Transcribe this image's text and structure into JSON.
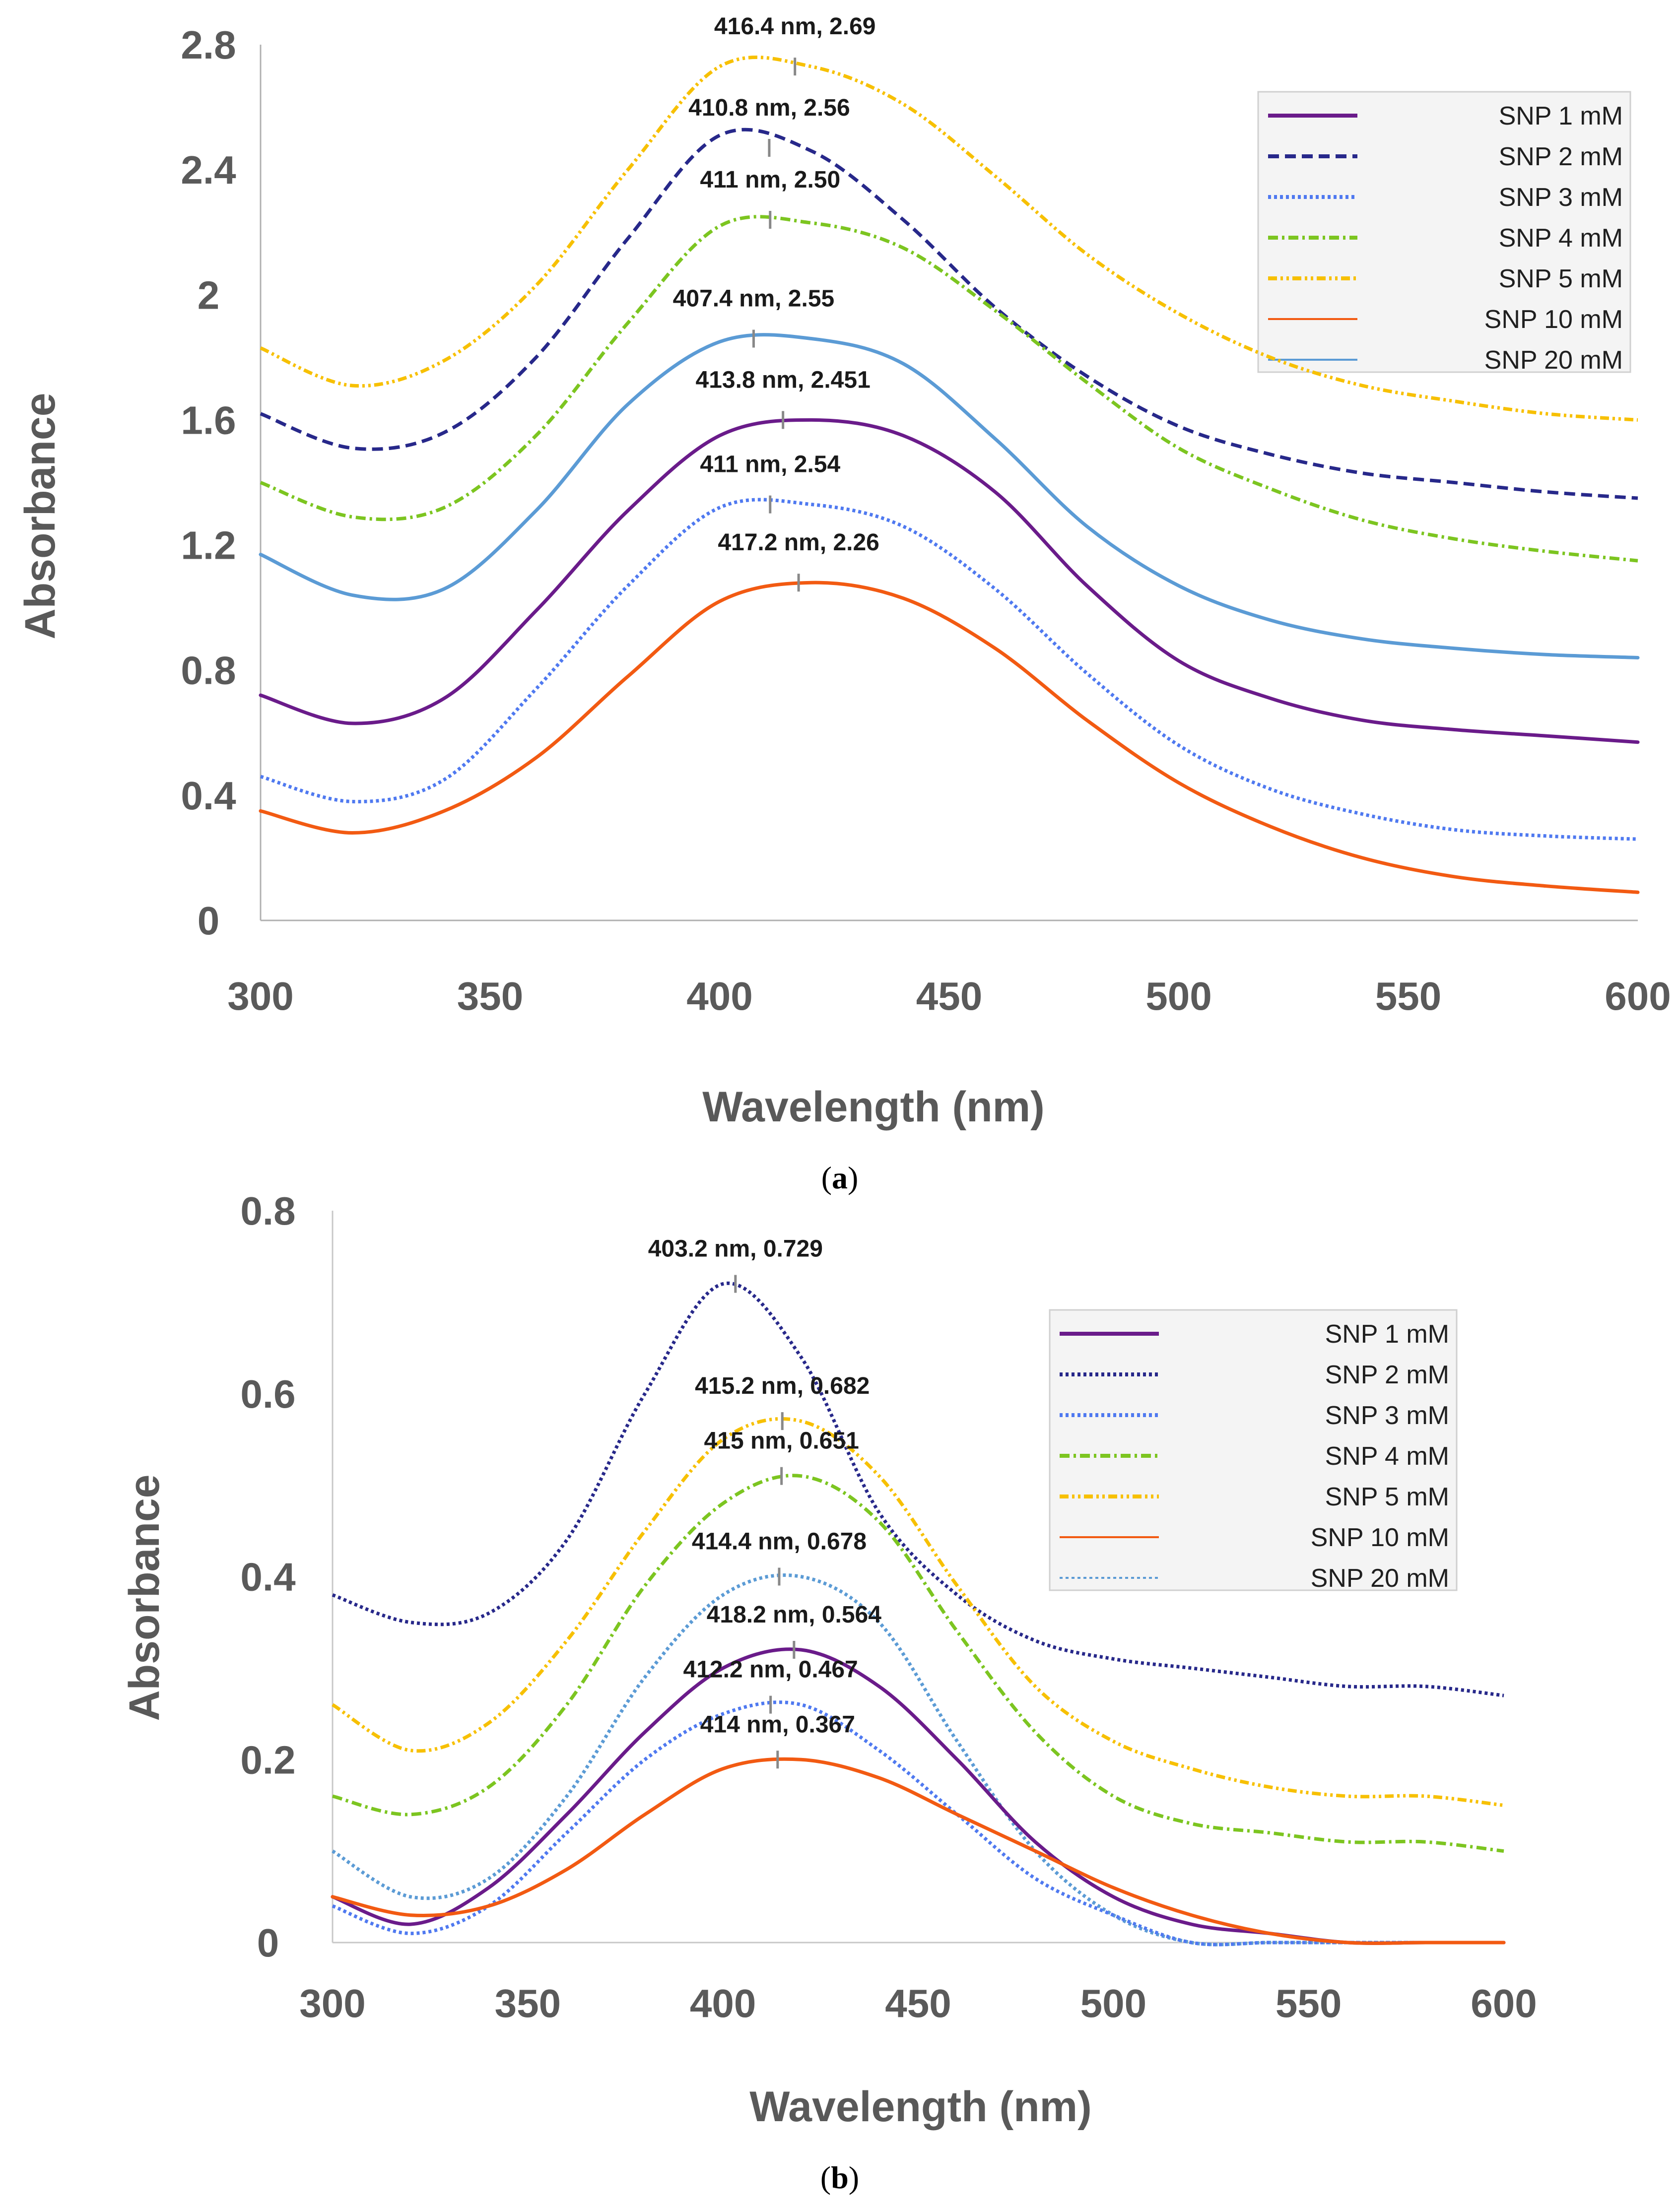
{
  "colors": {
    "SNP 1 mM": "#6a1b8a",
    "SNP 2 mM": "#27288a",
    "SNP 3 mM": "#4f79f0",
    "SNP 4 mM": "#7cc520",
    "SNP 5 mM": "#f7c000",
    "SNP 10 mM": "#f25a12",
    "SNP 20 mM": "#5b9bd5"
  },
  "chart_data": [
    {
      "id": "a",
      "type": "line",
      "caption": "a",
      "xlabel": "Wavelength (nm)",
      "ylabel": "Absorbance",
      "xlim": [
        300,
        600
      ],
      "ylim": [
        0,
        2.8
      ],
      "xticks": [
        "300",
        "350",
        "400",
        "450",
        "500",
        "550",
        "600"
      ],
      "yticks": [
        "0",
        "0.4",
        "0.8",
        "1.2",
        "1.6",
        "2",
        "2.4",
        "2.8"
      ],
      "legend": [
        "SNP 1 mM",
        "SNP 2 mM",
        "SNP 3 mM",
        "SNP 4 mM",
        "SNP 5 mM",
        "SNP 10 mM",
        "SNP 20 mM"
      ],
      "series": [
        {
          "name": "SNP 5 mM",
          "style": "dashdotdot",
          "x": [
            300,
            320,
            340,
            360,
            380,
            400,
            420,
            440,
            460,
            480,
            500,
            520,
            540,
            560,
            580,
            600
          ],
          "y": [
            1.83,
            1.71,
            1.79,
            2.03,
            2.4,
            2.73,
            2.73,
            2.61,
            2.38,
            2.13,
            1.94,
            1.8,
            1.71,
            1.66,
            1.62,
            1.6
          ]
        },
        {
          "name": "SNP 2 mM",
          "style": "dashed",
          "x": [
            300,
            320,
            340,
            360,
            380,
            400,
            420,
            440,
            460,
            480,
            500,
            520,
            540,
            560,
            580,
            600
          ],
          "y": [
            1.62,
            1.51,
            1.56,
            1.8,
            2.18,
            2.51,
            2.46,
            2.24,
            1.96,
            1.74,
            1.58,
            1.49,
            1.43,
            1.4,
            1.37,
            1.35
          ]
        },
        {
          "name": "SNP 4 mM",
          "style": "dashdot",
          "x": [
            300,
            320,
            340,
            360,
            380,
            400,
            420,
            440,
            460,
            480,
            500,
            520,
            540,
            560,
            580,
            600
          ],
          "y": [
            1.4,
            1.29,
            1.32,
            1.55,
            1.91,
            2.22,
            2.23,
            2.15,
            1.95,
            1.72,
            1.51,
            1.38,
            1.28,
            1.22,
            1.18,
            1.15
          ]
        },
        {
          "name": "SNP 20 mM",
          "style": "solid",
          "x": [
            300,
            320,
            340,
            360,
            380,
            400,
            420,
            440,
            460,
            480,
            500,
            520,
            540,
            560,
            580,
            600
          ],
          "y": [
            1.17,
            1.04,
            1.06,
            1.31,
            1.65,
            1.85,
            1.86,
            1.78,
            1.54,
            1.26,
            1.07,
            0.96,
            0.9,
            0.87,
            0.85,
            0.84
          ]
        },
        {
          "name": "SNP 1 mM",
          "style": "solid",
          "x": [
            300,
            320,
            340,
            360,
            380,
            400,
            420,
            440,
            460,
            480,
            500,
            520,
            540,
            560,
            580,
            600
          ],
          "y": [
            0.72,
            0.63,
            0.71,
            0.99,
            1.31,
            1.55,
            1.6,
            1.55,
            1.37,
            1.07,
            0.83,
            0.71,
            0.64,
            0.61,
            0.59,
            0.57
          ]
        },
        {
          "name": "SNP 3 mM",
          "style": "dotted",
          "x": [
            300,
            320,
            340,
            360,
            380,
            400,
            420,
            440,
            460,
            480,
            500,
            520,
            540,
            560,
            580,
            600
          ],
          "y": [
            0.46,
            0.38,
            0.45,
            0.74,
            1.07,
            1.32,
            1.33,
            1.26,
            1.06,
            0.79,
            0.56,
            0.42,
            0.34,
            0.29,
            0.27,
            0.26
          ]
        },
        {
          "name": "SNP 10 mM",
          "style": "solid",
          "x": [
            300,
            320,
            340,
            360,
            380,
            400,
            420,
            440,
            460,
            480,
            500,
            520,
            540,
            560,
            580,
            600
          ],
          "y": [
            0.35,
            0.28,
            0.35,
            0.52,
            0.78,
            1.02,
            1.08,
            1.03,
            0.87,
            0.64,
            0.44,
            0.3,
            0.2,
            0.14,
            0.11,
            0.09
          ]
        }
      ],
      "annotations": [
        {
          "text": "416.4 nm, 2.69",
          "x": 416.4,
          "y": 2.73,
          "dy": 1.0
        },
        {
          "text": "410.8 nm, 2.56",
          "x": 410.8,
          "y": 2.47,
          "dy": 0.73
        },
        {
          "text": "411 nm, 2.50",
          "x": 411,
          "y": 2.24,
          "dy": 0.73
        },
        {
          "text": "407.4 nm, 2.55",
          "x": 407.4,
          "y": 1.86,
          "dy": 0.73
        },
        {
          "text": "413.8 nm, 2.451",
          "x": 413.8,
          "y": 1.6,
          "dy": 0.73
        },
        {
          "text": "411 nm, 2.54",
          "x": 411,
          "y": 1.33,
          "dy": 0.73
        },
        {
          "text": "417.2 nm, 2.26",
          "x": 417.2,
          "y": 1.08,
          "dy": 0.73
        }
      ]
    },
    {
      "id": "b",
      "type": "line",
      "caption": "b",
      "xlabel": "Wavelength (nm)",
      "ylabel": "Absorbance",
      "xlim": [
        300,
        600
      ],
      "ylim": [
        0,
        0.8
      ],
      "xticks": [
        "300",
        "350",
        "400",
        "450",
        "500",
        "550",
        "600"
      ],
      "yticks": [
        "0",
        "0.2",
        "0.4",
        "0.6",
        "0.8"
      ],
      "legend": [
        "SNP 1 mM",
        "SNP 2 mM",
        "SNP 3 mM",
        "SNP 4 mM",
        "SNP 5 mM",
        "SNP 10 mM",
        "SNP 20 mM"
      ],
      "series": [
        {
          "name": "SNP 2 mM",
          "style": "dotted",
          "x": [
            300,
            320,
            340,
            360,
            380,
            400,
            420,
            440,
            460,
            480,
            500,
            520,
            540,
            560,
            580,
            600
          ],
          "y": [
            0.38,
            0.35,
            0.36,
            0.44,
            0.6,
            0.72,
            0.64,
            0.47,
            0.38,
            0.33,
            0.31,
            0.3,
            0.29,
            0.28,
            0.28,
            0.27
          ]
        },
        {
          "name": "SNP 5 mM",
          "style": "dashdotdot",
          "x": [
            300,
            320,
            340,
            360,
            380,
            400,
            420,
            440,
            460,
            480,
            500,
            520,
            540,
            560,
            580,
            600
          ],
          "y": [
            0.26,
            0.21,
            0.24,
            0.33,
            0.45,
            0.55,
            0.57,
            0.51,
            0.39,
            0.28,
            0.22,
            0.19,
            0.17,
            0.16,
            0.16,
            0.15
          ]
        },
        {
          "name": "SNP 4 mM",
          "style": "dashdot",
          "x": [
            300,
            320,
            340,
            360,
            380,
            400,
            420,
            440,
            460,
            480,
            500,
            520,
            540,
            560,
            580,
            600
          ],
          "y": [
            0.16,
            0.14,
            0.17,
            0.26,
            0.39,
            0.48,
            0.51,
            0.46,
            0.34,
            0.23,
            0.16,
            0.13,
            0.12,
            0.11,
            0.11,
            0.1
          ]
        },
        {
          "name": "SNP 20 mM",
          "style": "dotted",
          "x": [
            300,
            320,
            340,
            360,
            380,
            400,
            420,
            440,
            460,
            480,
            500,
            520,
            540,
            560,
            580,
            600
          ],
          "y": [
            0.1,
            0.05,
            0.07,
            0.16,
            0.29,
            0.38,
            0.4,
            0.35,
            0.22,
            0.1,
            0.03,
            0.0,
            0.0,
            0.0,
            0.0,
            0.0
          ]
        },
        {
          "name": "SNP 1 mM",
          "style": "solid",
          "x": [
            300,
            320,
            340,
            360,
            380,
            400,
            420,
            440,
            460,
            480,
            500,
            520,
            540,
            560,
            580,
            600
          ],
          "y": [
            0.05,
            0.02,
            0.06,
            0.14,
            0.23,
            0.3,
            0.32,
            0.28,
            0.2,
            0.11,
            0.05,
            0.02,
            0.01,
            0.0,
            0.0,
            0.0
          ]
        },
        {
          "name": "SNP 3 mM",
          "style": "dotted",
          "x": [
            300,
            320,
            340,
            360,
            380,
            400,
            420,
            440,
            460,
            480,
            500,
            520,
            540,
            560,
            580,
            600
          ],
          "y": [
            0.04,
            0.01,
            0.04,
            0.12,
            0.2,
            0.25,
            0.26,
            0.21,
            0.14,
            0.07,
            0.03,
            0.0,
            0.0,
            0.0,
            0.0,
            0.0
          ]
        },
        {
          "name": "SNP 10 mM",
          "style": "solid",
          "x": [
            300,
            320,
            340,
            360,
            380,
            400,
            420,
            440,
            460,
            480,
            500,
            520,
            540,
            560,
            580,
            600
          ],
          "y": [
            0.05,
            0.03,
            0.04,
            0.08,
            0.14,
            0.19,
            0.2,
            0.18,
            0.14,
            0.1,
            0.06,
            0.03,
            0.01,
            0.0,
            0.0,
            0.0
          ]
        }
      ],
      "annotations": [
        {
          "text": "403.2 nm, 0.729",
          "x": 403.2,
          "y": 0.72,
          "dy": 0.09
        },
        {
          "text": "415.2 nm, 0.682",
          "x": 415.2,
          "y": 0.57,
          "dy": 0.045
        },
        {
          "text": "415 nm, 0.651",
          "x": 415,
          "y": 0.51,
          "dy": 0.045
        },
        {
          "text": "414.4 nm, 0.678",
          "x": 414.4,
          "y": 0.4,
          "dy": 0.045
        },
        {
          "text": "418.2 nm, 0.564",
          "x": 418.2,
          "y": 0.32,
          "dy": 0.045
        },
        {
          "text": "412.2 nm, 0.467",
          "x": 412.2,
          "y": 0.26,
          "dy": 0.045
        },
        {
          "text": "414 nm, 0.367",
          "x": 414,
          "y": 0.2,
          "dy": 0.045
        }
      ]
    }
  ]
}
